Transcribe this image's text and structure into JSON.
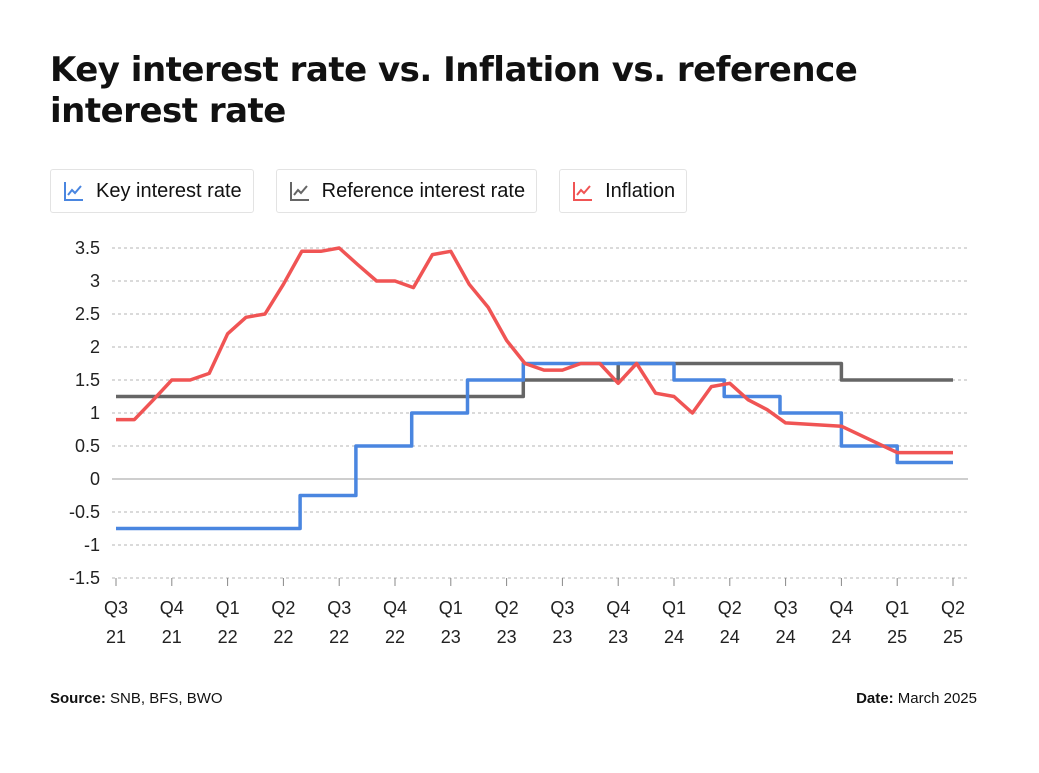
{
  "title": "Key interest rate vs. Inflation vs. reference interest rate",
  "legend": [
    {
      "name": "Key interest rate",
      "color": "#4A86E0",
      "icon": "line-chart-icon"
    },
    {
      "name": "Reference interest rate",
      "color": "#666666",
      "icon": "line-chart-icon"
    },
    {
      "name": "Inflation",
      "color": "#F05454",
      "icon": "line-chart-icon"
    }
  ],
  "footer": {
    "source_label": "Source:",
    "source_value": "SNB, BFS, BWO",
    "date_label": "Date:",
    "date_value": "March 2025"
  },
  "chart_data": {
    "type": "line",
    "title": "Key interest rate vs. Inflation vs. reference interest rate",
    "xlabel": "",
    "ylabel": "",
    "ylim": [
      -1.5,
      3.5
    ],
    "yticks": [
      "3.5",
      "3",
      "2.5",
      "2",
      "1.5",
      "1",
      "0.5",
      "0",
      "-0.5",
      "-1",
      "-1.5"
    ],
    "grid": true,
    "legend_position": "top",
    "x_categories": [
      [
        "Q3",
        "21"
      ],
      [
        "Q4",
        "21"
      ],
      [
        "Q1",
        "22"
      ],
      [
        "Q2",
        "22"
      ],
      [
        "Q3",
        "22"
      ],
      [
        "Q4",
        "22"
      ],
      [
        "Q1",
        "23"
      ],
      [
        "Q2",
        "23"
      ],
      [
        "Q3",
        "23"
      ],
      [
        "Q4",
        "23"
      ],
      [
        "Q1",
        "24"
      ],
      [
        "Q2",
        "24"
      ],
      [
        "Q3",
        "24"
      ],
      [
        "Q4",
        "24"
      ],
      [
        "Q1",
        "25"
      ],
      [
        "Q2",
        "25"
      ]
    ],
    "series": [
      {
        "name": "Reference interest rate",
        "color": "#666666",
        "step": true,
        "points": [
          [
            0,
            1.25
          ],
          [
            7.3,
            1.25
          ],
          [
            7.3,
            1.5
          ],
          [
            9.0,
            1.5
          ],
          [
            9.0,
            1.75
          ],
          [
            13.0,
            1.75
          ],
          [
            13.0,
            1.5
          ],
          [
            15.0,
            1.5
          ]
        ]
      },
      {
        "name": "Key interest rate",
        "color": "#4A86E0",
        "step": true,
        "points": [
          [
            0,
            -0.75
          ],
          [
            3.3,
            -0.75
          ],
          [
            3.3,
            -0.25
          ],
          [
            4.3,
            -0.25
          ],
          [
            4.3,
            0.5
          ],
          [
            5.3,
            0.5
          ],
          [
            5.3,
            1.0
          ],
          [
            6.3,
            1.0
          ],
          [
            6.3,
            1.5
          ],
          [
            7.3,
            1.5
          ],
          [
            7.3,
            1.75
          ],
          [
            10.0,
            1.75
          ],
          [
            10.0,
            1.5
          ],
          [
            10.9,
            1.5
          ],
          [
            10.9,
            1.25
          ],
          [
            11.9,
            1.25
          ],
          [
            11.9,
            1.0
          ],
          [
            13.0,
            1.0
          ],
          [
            13.0,
            0.5
          ],
          [
            14.0,
            0.5
          ],
          [
            14.0,
            0.25
          ],
          [
            15.0,
            0.25
          ]
        ]
      },
      {
        "name": "Inflation",
        "color": "#F05454",
        "step": false,
        "points": [
          [
            0,
            0.9
          ],
          [
            0.33,
            0.9
          ],
          [
            0.67,
            1.2
          ],
          [
            1.0,
            1.5
          ],
          [
            1.33,
            1.5
          ],
          [
            1.67,
            1.6
          ],
          [
            2.0,
            2.2
          ],
          [
            2.33,
            2.45
          ],
          [
            2.67,
            2.5
          ],
          [
            3.0,
            2.95
          ],
          [
            3.33,
            3.45
          ],
          [
            3.67,
            3.45
          ],
          [
            4.0,
            3.5
          ],
          [
            4.33,
            3.25
          ],
          [
            4.67,
            3.0
          ],
          [
            5.0,
            3.0
          ],
          [
            5.33,
            2.9
          ],
          [
            5.67,
            3.4
          ],
          [
            6.0,
            3.45
          ],
          [
            6.33,
            2.95
          ],
          [
            6.67,
            2.6
          ],
          [
            7.0,
            2.1
          ],
          [
            7.33,
            1.75
          ],
          [
            7.67,
            1.65
          ],
          [
            8.0,
            1.65
          ],
          [
            8.33,
            1.75
          ],
          [
            8.67,
            1.75
          ],
          [
            9.0,
            1.45
          ],
          [
            9.33,
            1.75
          ],
          [
            9.67,
            1.3
          ],
          [
            10.0,
            1.25
          ],
          [
            10.33,
            1.0
          ],
          [
            10.67,
            1.4
          ],
          [
            11.0,
            1.45
          ],
          [
            11.33,
            1.2
          ],
          [
            11.67,
            1.05
          ],
          [
            12.0,
            0.85
          ],
          [
            13.0,
            0.8
          ],
          [
            14.0,
            0.4
          ],
          [
            15.0,
            0.4
          ]
        ]
      }
    ]
  }
}
